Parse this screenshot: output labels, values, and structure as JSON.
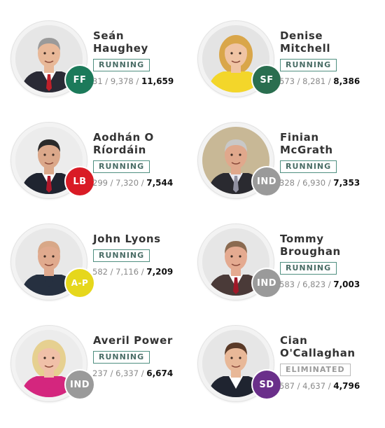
{
  "candidates": [
    {
      "name": "Seán\nHaughey",
      "status": "RUNNING",
      "party": "FF",
      "party_color": "#1c7a5a",
      "counts": [
        "31",
        "9,378"
      ],
      "total": "11,659",
      "photo": {
        "bg": "#e6e6e6",
        "skin": "#e8b898",
        "hair": "#9a9a9a",
        "suit": "#2a2a35",
        "shirt": "#ffffff",
        "tie": "#c0202a"
      }
    },
    {
      "name": "Denise\nMitchell",
      "status": "RUNNING",
      "party": "SF",
      "party_color": "#2a6e4f",
      "counts": [
        "573",
        "8,281"
      ],
      "total": "8,386",
      "photo": {
        "bg": "#e4e4e4",
        "skin": "#f0c4a4",
        "hair": "#d9a64a",
        "suit": "#f3d62a",
        "shirt": "#f3d62a",
        "tie": ""
      }
    },
    {
      "name": "Aodhán O\nRíordáin",
      "status": "RUNNING",
      "party": "LB",
      "party_color": "#d91b25",
      "counts": [
        "299",
        "7,320"
      ],
      "total": "7,544",
      "photo": {
        "bg": "#ececec",
        "skin": "#dba88a",
        "hair": "#2a2a2a",
        "suit": "#1f2430",
        "shirt": "#ffffff",
        "tie": "#b0182a"
      }
    },
    {
      "name": "Finian\nMcGrath",
      "status": "RUNNING",
      "party": "IND",
      "party_color": "#9a9a9a",
      "counts": [
        "328",
        "6,930"
      ],
      "total": "7,353",
      "photo": {
        "bg": "#c8b896",
        "skin": "#e0a88c",
        "hair": "#c8c8c8",
        "suit": "#2a2a30",
        "shirt": "#e8e8f0",
        "tie": "#9090a0"
      }
    },
    {
      "name": "John Lyons",
      "status": "RUNNING",
      "party": "A-P",
      "party_color": "#e6d71c",
      "counts": [
        "582",
        "7,116"
      ],
      "total": "7,209",
      "photo": {
        "bg": "#e8e8e8",
        "skin": "#e0aa8e",
        "hair": "#d8a888",
        "suit": "#263040",
        "shirt": "#263040",
        "tie": ""
      }
    },
    {
      "name": "Tommy\nBroughan",
      "status": "RUNNING",
      "party": "IND",
      "party_color": "#9a9a9a",
      "counts": [
        "583",
        "6,823"
      ],
      "total": "7,003",
      "photo": {
        "bg": "#e6e6e6",
        "skin": "#e4aa90",
        "hair": "#8a6a50",
        "suit": "#4a3a38",
        "shirt": "#ffffff",
        "tie": "#a01828"
      }
    },
    {
      "name": "Averil Power",
      "status": "RUNNING",
      "party": "IND",
      "party_color": "#9a9a9a",
      "counts": [
        "237",
        "6,337"
      ],
      "total": "6,674",
      "photo": {
        "bg": "#ececec",
        "skin": "#f0c0a8",
        "hair": "#e6d090",
        "suit": "#d4267e",
        "shirt": "#d4267e",
        "tie": ""
      }
    },
    {
      "name": "Cian\nO'Callaghan",
      "status": "ELIMINATED",
      "party": "SD",
      "party_color": "#6a2f8a",
      "counts": [
        "587",
        "4,637"
      ],
      "total": "4,796",
      "photo": {
        "bg": "#e6e6e6",
        "skin": "#e8b898",
        "hair": "#5a3a28",
        "suit": "#1f2430",
        "shirt": "#ffffff",
        "tie": ""
      }
    }
  ]
}
